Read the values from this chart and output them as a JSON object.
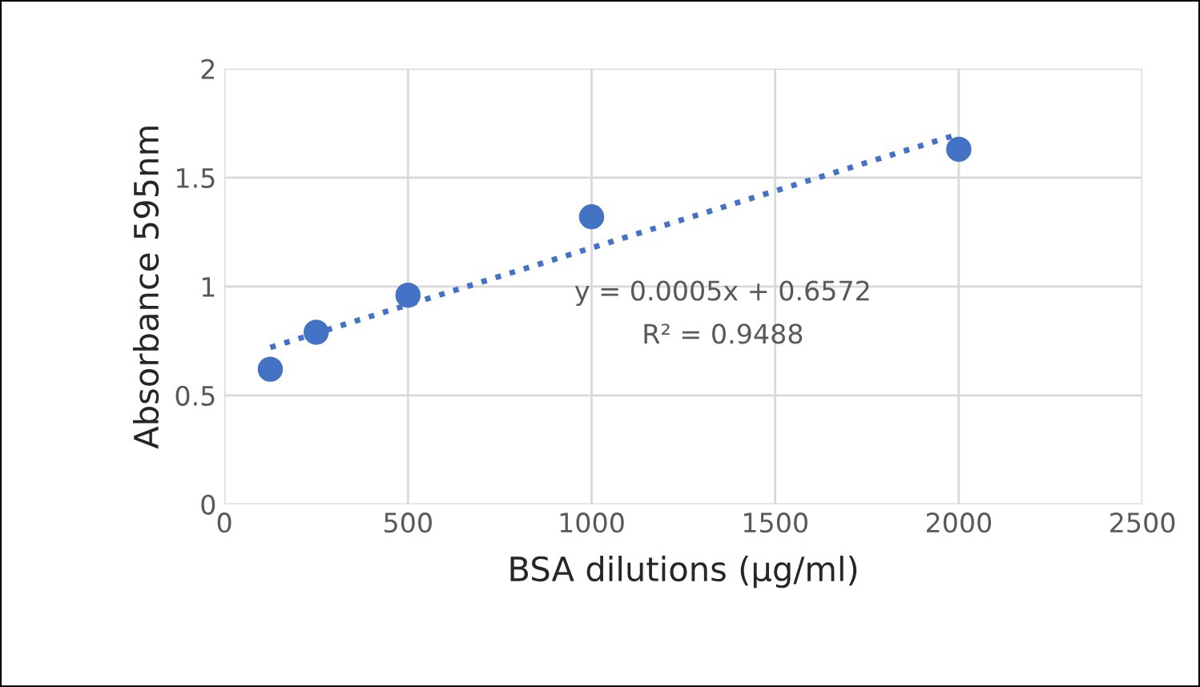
{
  "chart_data": {
    "type": "scatter",
    "xlabel": "BSA dilutions (µg/ml)",
    "ylabel": "Absorbance 595nm",
    "annotations": [
      "y = 0.0005x + 0.6572",
      "R² = 0.9488"
    ],
    "series": [
      {
        "color": "#4472c4",
        "x": [
          125,
          250,
          500,
          1000,
          2000
        ],
        "values": [
          0.62,
          0.79,
          0.96,
          1.32,
          1.63
        ],
        "marker": "circle"
      },
      {
        "type": "line",
        "color": "#4472c4",
        "x": [
          125,
          2000
        ],
        "values": [
          0.72,
          1.7
        ],
        "line_style": "dotted",
        "marker": "none"
      }
    ],
    "xlim": [
      0,
      2500
    ],
    "xticks": [
      0,
      500,
      1000,
      1500,
      2000,
      2500
    ],
    "ylim": [
      0,
      2
    ],
    "yticks": [
      0,
      0.5,
      1,
      1.5,
      2
    ],
    "grid": true,
    "legend": false
  }
}
